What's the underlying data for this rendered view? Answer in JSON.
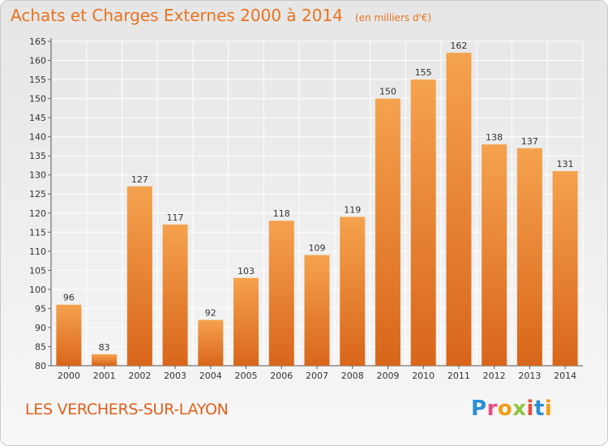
{
  "header": {
    "title": "Achats et Charges Externes 2000 à 2014",
    "subtitle": "(en milliers d'€)"
  },
  "footer": {
    "commune": "LES VERCHERS-SUR-LAYON",
    "logo_text": "Proxiti",
    "logo_letters": [
      {
        "char": "P",
        "color": "#2a8fd6"
      },
      {
        "char": "r",
        "color": "#e84c8b"
      },
      {
        "char": "o",
        "color": "#f39c12"
      },
      {
        "char": "x",
        "color": "#8cc63f"
      },
      {
        "char": "i",
        "color": "#e84c3d"
      },
      {
        "char": "t",
        "color": "#2a8fd6"
      },
      {
        "char": "i",
        "color": "#f39c12"
      }
    ]
  },
  "colors": {
    "accent": "#e8731e",
    "bar_top": "#f5a24e",
    "bar_bottom": "#d9661a",
    "grid": "#ffffff"
  },
  "chart_data": {
    "type": "bar",
    "title": "Achats et Charges Externes 2000 à 2014",
    "subtitle": "(en milliers d'€)",
    "categories": [
      "2000",
      "2001",
      "2002",
      "2003",
      "2004",
      "2005",
      "2006",
      "2007",
      "2008",
      "2009",
      "2010",
      "2011",
      "2012",
      "2013",
      "2014"
    ],
    "values": [
      96,
      83,
      127,
      117,
      92,
      103,
      118,
      109,
      119,
      150,
      155,
      162,
      138,
      137,
      131
    ],
    "ylim": [
      80,
      165
    ],
    "yticks": [
      80,
      85,
      90,
      95,
      100,
      105,
      110,
      115,
      120,
      125,
      130,
      135,
      140,
      145,
      150,
      155,
      160,
      165
    ],
    "grid": true,
    "xlabel": "",
    "ylabel": ""
  }
}
